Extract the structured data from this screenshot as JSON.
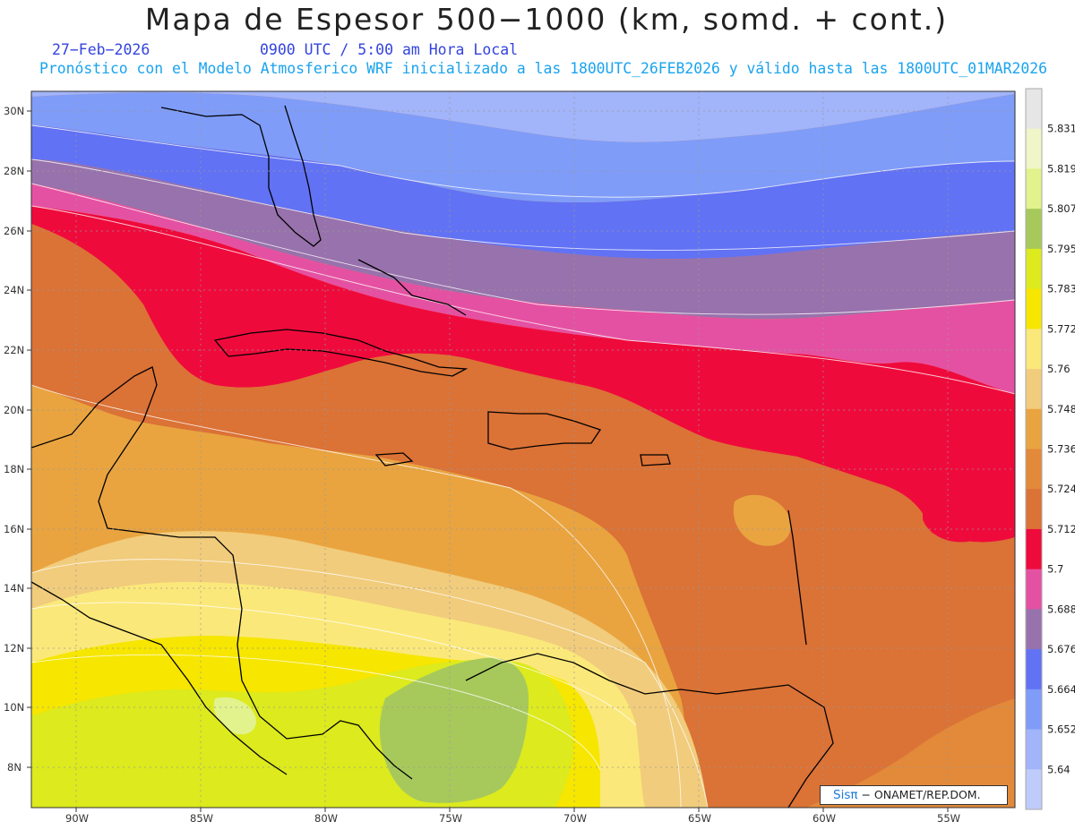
{
  "header": {
    "title": "Mapa de Espesor 500−1000 (km, somd. + cont.)",
    "date": "27−Feb−2026",
    "time": "0900 UTC / 5:00 am Hora Local",
    "model_line": "Pronóstico con el Modelo Atmosferico WRF inicializado a las 1800UTC_26FEB2026 y válido hasta las  1800UTC_01MAR2026"
  },
  "axes": {
    "lat_labels": [
      "30N",
      "28N",
      "26N",
      "24N",
      "22N",
      "20N",
      "18N",
      "16N",
      "14N",
      "12N",
      "10N",
      "8N"
    ],
    "lon_labels": [
      "90W",
      "85W",
      "80W",
      "75W",
      "70W",
      "65W",
      "60W",
      "55W"
    ]
  },
  "legend": {
    "levels": [
      "5.831",
      "5.819",
      "5.807",
      "5.795",
      "5.783",
      "5.772",
      "5.76",
      "5.748",
      "5.736",
      "5.724",
      "5.712",
      "5.7",
      "5.688",
      "5.676",
      "5.664",
      "5.652",
      "5.64"
    ],
    "colors_top_to_bottom": [
      "#e6e6e6",
      "#f0f6c8",
      "#e2f28c",
      "#a7c95c",
      "#dcea1e",
      "#f6e600",
      "#fbe87a",
      "#f1cc7c",
      "#e9a440",
      "#e3893a",
      "#db7236",
      "#ef0a3c",
      "#e551a2",
      "#9872ac",
      "#6272f4",
      "#7f9cf8",
      "#a2b4fa",
      "#bfcbfb"
    ]
  },
  "credit": {
    "brand": "Sisπ",
    "text": "− ONAMET/REP.DOM."
  }
}
